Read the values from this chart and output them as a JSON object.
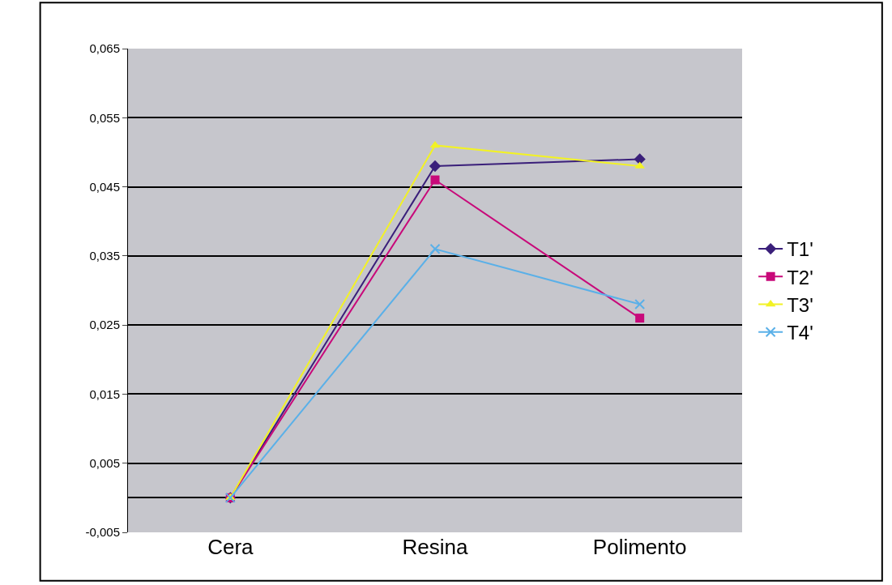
{
  "chart_data": {
    "type": "line",
    "categories": [
      "Cera",
      "Resina",
      "Polimento"
    ],
    "series": [
      {
        "name": "T1'",
        "color": "#3a1f7a",
        "marker": "diamond",
        "values": [
          0,
          0.048,
          0.049
        ]
      },
      {
        "name": "T2'",
        "color": "#c8097a",
        "marker": "square",
        "values": [
          0,
          0.046,
          0.026
        ]
      },
      {
        "name": "T3'",
        "color": "#f2f224",
        "marker": "triangle",
        "values": [
          0,
          0.051,
          0.048
        ]
      },
      {
        "name": "T4'",
        "color": "#5ab0e8",
        "marker": "cross",
        "values": [
          0,
          0.036,
          0.028
        ]
      }
    ],
    "ylim": [
      -0.005,
      0.065
    ],
    "yticks": [
      {
        "value": -0.005,
        "label": "-0,005"
      },
      {
        "value": 0.005,
        "label": "0,005"
      },
      {
        "value": 0.015,
        "label": "0,015"
      },
      {
        "value": 0.025,
        "label": "0,025"
      },
      {
        "value": 0.035,
        "label": "0,035"
      },
      {
        "value": 0.045,
        "label": "0,045"
      },
      {
        "value": 0.055,
        "label": "0,055"
      },
      {
        "value": 0.065,
        "label": "0,065"
      }
    ],
    "grid": "y",
    "legend": "right"
  }
}
